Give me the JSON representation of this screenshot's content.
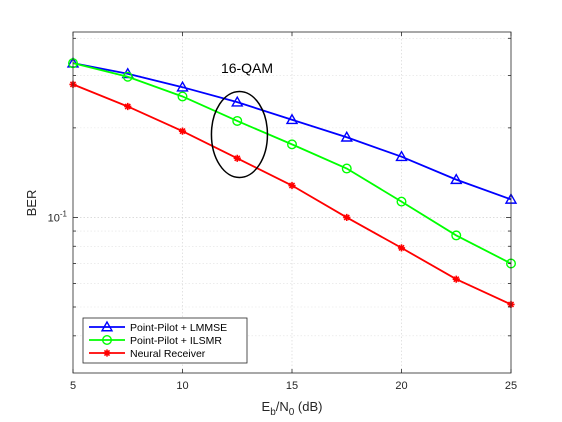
{
  "chart_data": {
    "type": "line",
    "title": "",
    "xlabel": {
      "main": "E",
      "sub1": "b",
      "mid": "/N",
      "sub2": "0",
      "tail": " (dB)"
    },
    "ylabel": "BER",
    "xlim": [
      5,
      25
    ],
    "ylim": [
      0.03,
      0.42
    ],
    "yscale": "log",
    "grid": true,
    "legend_position": "bottom-left",
    "x_ticks": [
      5,
      10,
      15,
      20,
      25
    ],
    "y_ticks": [
      {
        "value": 0.1,
        "base": "10",
        "exp": "-1"
      }
    ],
    "x": [
      5,
      7.5,
      10,
      12.5,
      15,
      17.5,
      20,
      22.5,
      25
    ],
    "series": [
      {
        "name": "Point-Pilot + LMMSE",
        "color": "#0000ff",
        "marker": "triangle",
        "values": [
          0.33,
          0.304,
          0.274,
          0.244,
          0.213,
          0.186,
          0.16,
          0.134,
          0.115
        ]
      },
      {
        "name": "Point-Pilot + ILSMR",
        "color": "#00ff00",
        "marker": "circle",
        "values": [
          0.33,
          0.297,
          0.255,
          0.211,
          0.176,
          0.146,
          0.113,
          0.087,
          0.07
        ]
      },
      {
        "name": "Neural Receiver",
        "color": "#ff0000",
        "marker": "asterisk",
        "values": [
          0.28,
          0.236,
          0.195,
          0.158,
          0.128,
          0.1,
          0.079,
          0.062,
          0.051
        ]
      }
    ],
    "annotation": {
      "text": "16-QAM",
      "ellipse_center": [
        12.6,
        0.19
      ]
    }
  }
}
